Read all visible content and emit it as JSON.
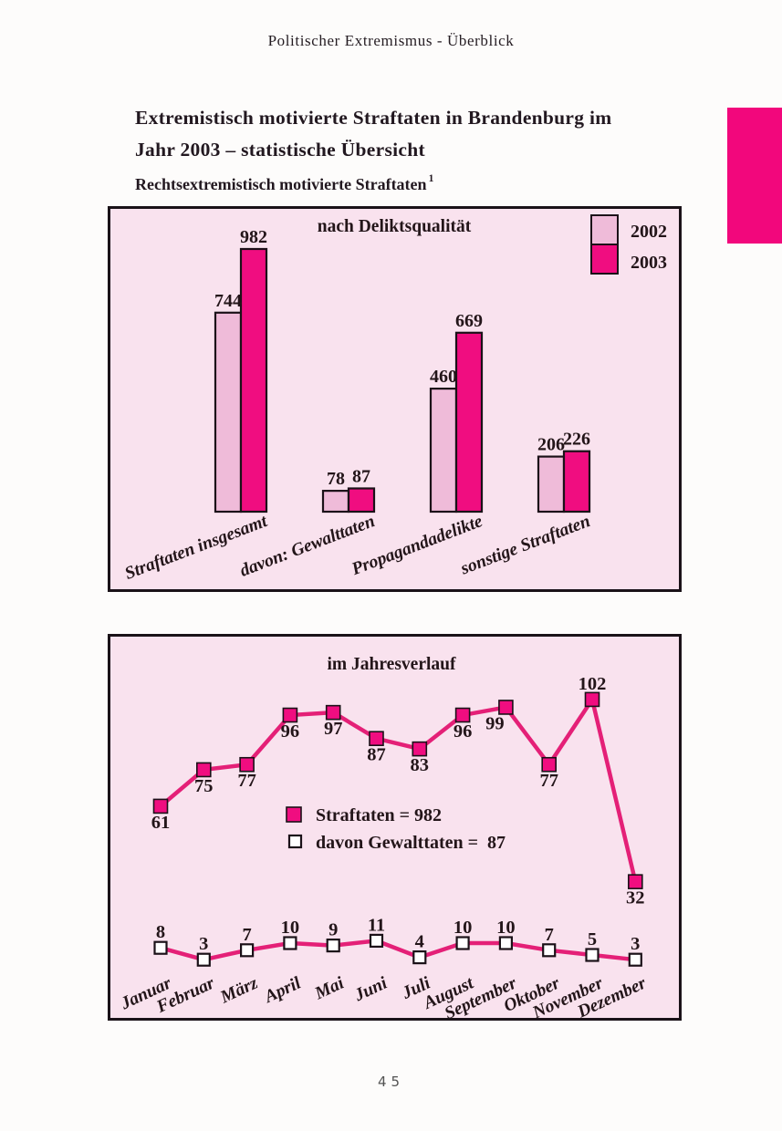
{
  "page": {
    "header": "Politischer Extremismus - Überblick",
    "title_line1": "Extremistisch motivierte Straftaten in Brandenburg im",
    "title_line2": "Jahr 2003 – statistische Übersicht",
    "subtitle": "Rechtsextremistisch motivierte Straftaten",
    "footnote_marker": "1",
    "page_number": "45"
  },
  "colors": {
    "magenta": "#f00d80",
    "light_pink": "#efbbd9",
    "panel_bg": "#f9e2ee",
    "line_pink": "#e42077",
    "tab_pink": "#f2077c",
    "ink": "#231519"
  },
  "chart_data": [
    {
      "type": "bar",
      "title": "nach Deliktsqualität",
      "categories": [
        "Straftaten insgesamt",
        "davon: Gewalttaten",
        "Propagandadelikte",
        "sonstige Straftaten"
      ],
      "series": [
        {
          "name": "2002",
          "color_key": "light_pink",
          "values": [
            744,
            78,
            460,
            206
          ]
        },
        {
          "name": "2003",
          "color_key": "magenta",
          "values": [
            982,
            87,
            669,
            226
          ]
        }
      ],
      "value_labels": true,
      "grid": false,
      "legend_position": "top-right",
      "xlabel": "",
      "ylabel": "",
      "ylim": [
        0,
        1132
      ]
    },
    {
      "type": "line",
      "title": "im Jahresverlauf",
      "categories": [
        "Januar",
        "Februar",
        "März",
        "April",
        "Mai",
        "Juni",
        "Juli",
        "August",
        "September",
        "Oktober",
        "November",
        "Dezember"
      ],
      "series": [
        {
          "name": "Straftaten = 982",
          "marker": "filled-square",
          "color_key": "magenta",
          "values": [
            61,
            75,
            77,
            96,
            97,
            87,
            83,
            96,
            99,
            77,
            102,
            32
          ],
          "total": 982
        },
        {
          "name": "davon Gewalttaten =  87",
          "marker": "open-square",
          "color_key": "white",
          "values": [
            8,
            3,
            7,
            10,
            9,
            11,
            4,
            10,
            10,
            7,
            5,
            3
          ],
          "total": 87
        }
      ],
      "value_labels": true,
      "grid": false,
      "legend_position": "center"
    }
  ]
}
